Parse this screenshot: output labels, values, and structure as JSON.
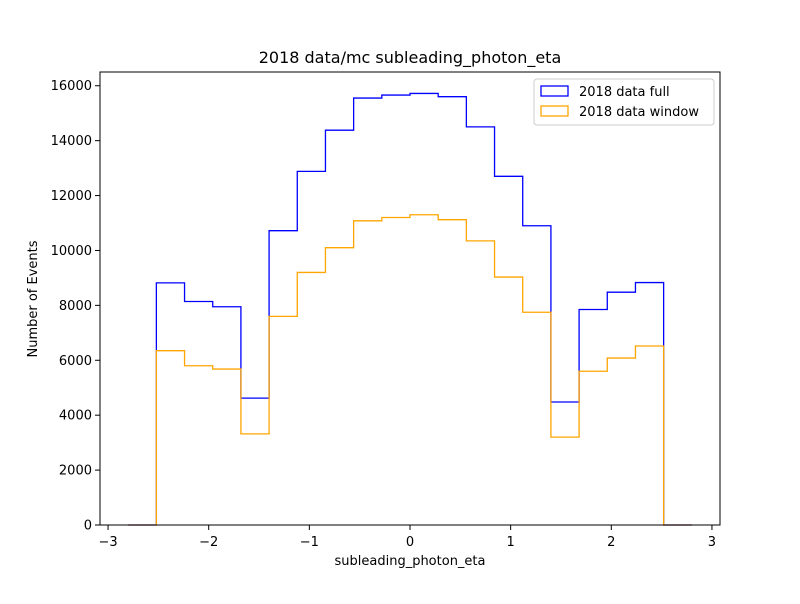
{
  "chart_data": {
    "type": "histogram-step",
    "title": "2018 data/mc subleading_photon_eta",
    "xlabel": "subleading_photon_eta",
    "ylabel": "Number of Events",
    "xlim": [
      -3.08,
      3.08
    ],
    "ylim": [
      0,
      16500
    ],
    "xticks": [
      -3,
      -2,
      -1,
      0,
      1,
      2,
      3
    ],
    "yticks": [
      0,
      2000,
      4000,
      6000,
      8000,
      10000,
      12000,
      14000,
      16000
    ],
    "bin_edges": [
      -2.8,
      -2.52,
      -2.24,
      -1.96,
      -1.68,
      -1.4,
      -1.12,
      -0.84,
      -0.56,
      -0.28,
      0.0,
      0.28,
      0.56,
      0.84,
      1.12,
      1.4,
      1.68,
      1.96,
      2.24,
      2.52,
      2.8
    ],
    "legend_position": "upper right",
    "series": [
      {
        "name": "2018 data full",
        "color": "#0000ff",
        "values": [
          0,
          8820,
          8140,
          7950,
          4620,
          10720,
          12880,
          14380,
          15550,
          15660,
          15720,
          15600,
          14500,
          12700,
          10900,
          4480,
          7850,
          8480,
          8830,
          0
        ]
      },
      {
        "name": "2018 data window",
        "color": "#ffa500",
        "values": [
          0,
          6350,
          5800,
          5680,
          3320,
          7600,
          9200,
          10100,
          11080,
          11200,
          11300,
          11120,
          10350,
          9030,
          7750,
          3200,
          5600,
          6080,
          6520,
          0
        ]
      }
    ]
  }
}
